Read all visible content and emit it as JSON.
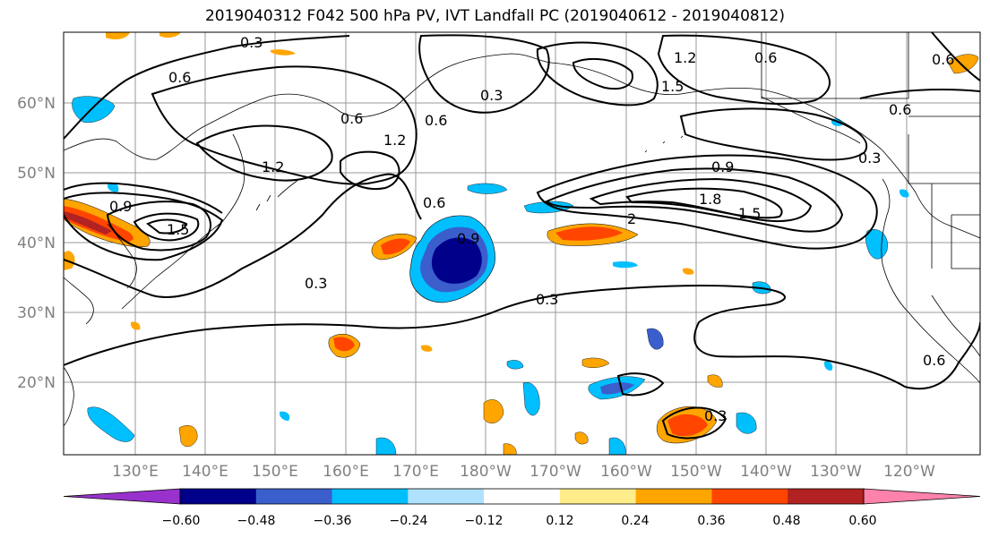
{
  "title": "2019040312 F042 500 hPa PV, IVT Landfall PC (2019040612 - 2019040812)",
  "lat_labels": [
    "60°N",
    "50°N",
    "40°N",
    "30°N",
    "20°N"
  ],
  "lon_labels": [
    "130°E",
    "140°E",
    "150°E",
    "160°E",
    "170°E",
    "180°W",
    "170°W",
    "160°W",
    "150°W",
    "140°W",
    "130°W",
    "120°W"
  ],
  "colorbar": {
    "tick_labels": [
      "−0.60",
      "−0.48",
      "−0.36",
      "−0.24",
      "−0.12",
      "0.12",
      "0.24",
      "0.36",
      "0.48",
      "0.60"
    ],
    "colors": [
      "#9932CC",
      "#00008B",
      "#3A5FCD",
      "#00BFFF",
      "#B0E2FF",
      "#FFFFFF",
      "#FFEC8B",
      "#FFA500",
      "#FF4500",
      "#B22222",
      "#FF82AB"
    ]
  },
  "contour_labels": [
    "0.3",
    "0.6",
    "0.9",
    "1.2",
    "1.5",
    "1.8",
    "2"
  ],
  "contour_label_text": {
    "a": "0.3",
    "b": "0.6",
    "c": "0.6",
    "d": "1.2",
    "e": "0.6",
    "f": "1.5",
    "g": "0.6",
    "h": "0.3",
    "i": "0.6",
    "j": "1.2",
    "k": "0.9",
    "l": "0.6",
    "m": "0.9",
    "n": "0.9",
    "o": "1.8",
    "p": "1.5",
    "q": "2",
    "r": "0.3",
    "s": "0.3",
    "t": "0.3",
    "u": "0.6",
    "v": "1.2",
    "w": "1.5",
    "x": "0.6",
    "y": "0.3"
  }
}
